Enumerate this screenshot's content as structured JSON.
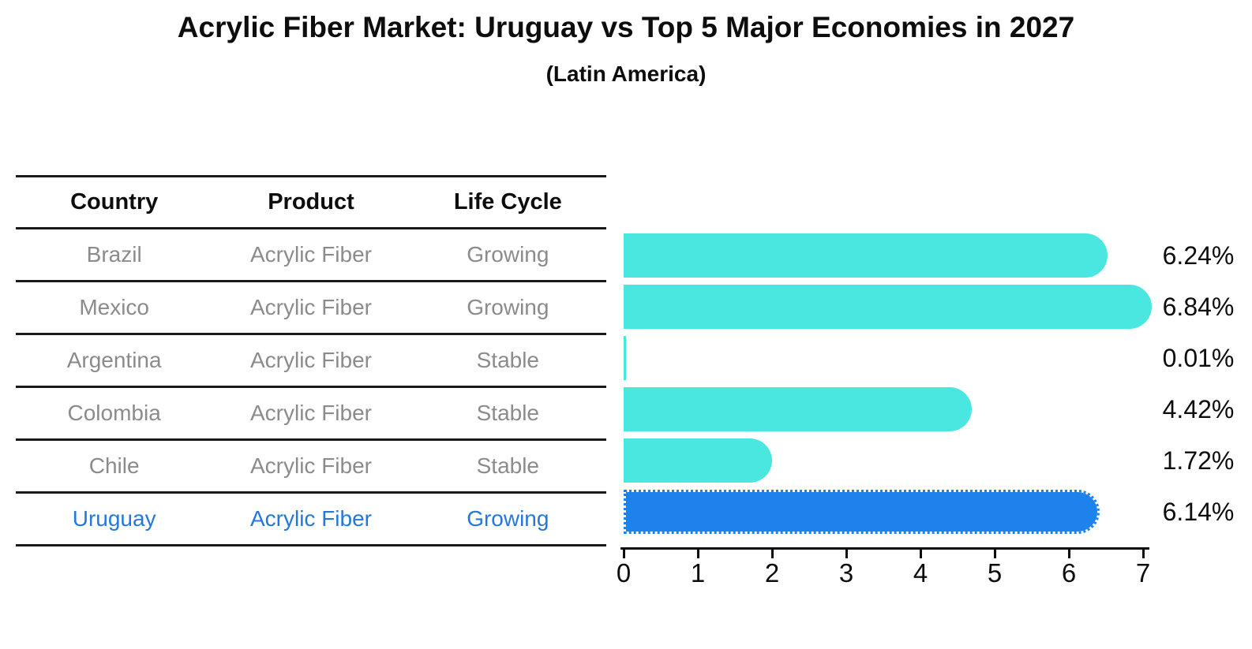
{
  "title": "Acrylic Fiber Market: Uruguay vs Top 5 Major Economies in 2027",
  "subtitle": "(Latin America)",
  "table": {
    "headers": [
      "Country",
      "Product",
      "Life Cycle"
    ],
    "rows": [
      {
        "country": "Brazil",
        "product": "Acrylic Fiber",
        "life_cycle": "Growing",
        "highlighted": false
      },
      {
        "country": "Mexico",
        "product": "Acrylic Fiber",
        "life_cycle": "Growing",
        "highlighted": false
      },
      {
        "country": "Argentina",
        "product": "Acrylic Fiber",
        "life_cycle": "Stable",
        "highlighted": false
      },
      {
        "country": "Colombia",
        "product": "Acrylic Fiber",
        "life_cycle": "Stable",
        "highlighted": false
      },
      {
        "country": "Chile",
        "product": "Acrylic Fiber",
        "life_cycle": "Stable",
        "highlighted": false
      },
      {
        "country": "Uruguay",
        "product": "Acrylic Fiber",
        "life_cycle": "Growing",
        "highlighted": true
      }
    ]
  },
  "chart_data": {
    "type": "bar",
    "orientation": "horizontal",
    "title": "Acrylic Fiber Market: Uruguay vs Top 5 Major Economies in 2027",
    "subtitle": "(Latin America)",
    "categories": [
      "Brazil",
      "Mexico",
      "Argentina",
      "Colombia",
      "Chile",
      "Uruguay"
    ],
    "values": [
      6.24,
      6.84,
      0.01,
      4.42,
      1.72,
      6.14
    ],
    "value_labels": [
      "6.24%",
      "6.84%",
      "0.01%",
      "4.42%",
      "1.72%",
      "6.14%"
    ],
    "highlight_index": 5,
    "xlim": [
      0,
      7
    ],
    "x_ticks": [
      "0",
      "1",
      "2",
      "3",
      "4",
      "5",
      "6",
      "7"
    ],
    "grid": false,
    "legend": false
  },
  "colors": {
    "bar": "#4AE7E1",
    "highlight_bar": "#1E82EC",
    "highlight_text": "#2478DB",
    "table_text": "#8B8B8B",
    "line": "#1A1A1A"
  }
}
